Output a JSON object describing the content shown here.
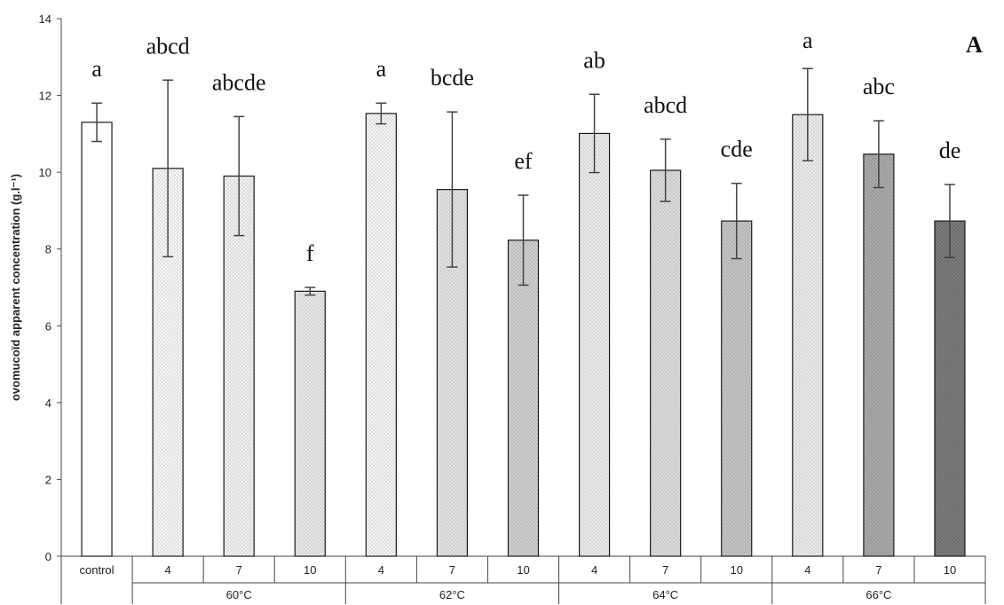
{
  "chart_data": {
    "type": "bar",
    "title": "",
    "panel_label": "A",
    "ylabel": "ovomucoïd apparent concentration (g.l⁻¹)",
    "xlabel": "",
    "ylim": [
      0,
      14
    ],
    "yticks": [
      0,
      2,
      4,
      6,
      8,
      10,
      12,
      14
    ],
    "grid": false,
    "legend": "none",
    "categories": [
      "control",
      "4",
      "7",
      "10",
      "4",
      "7",
      "10",
      "4",
      "7",
      "10",
      "4",
      "7",
      "10"
    ],
    "groups": [
      {
        "label": "",
        "members": [
          0
        ]
      },
      {
        "label": "60°C",
        "members": [
          1,
          2,
          3
        ]
      },
      {
        "label": "62°C",
        "members": [
          4,
          5,
          6
        ]
      },
      {
        "label": "64°C",
        "members": [
          7,
          8,
          9
        ]
      },
      {
        "label": "66°C",
        "members": [
          10,
          11,
          12
        ]
      }
    ],
    "values": [
      11.3,
      10.1,
      9.9,
      6.9,
      11.53,
      9.55,
      8.23,
      11.01,
      10.05,
      8.73,
      11.5,
      10.47,
      8.73
    ],
    "error": [
      0.5,
      2.3,
      1.55,
      0.1,
      0.27,
      2.02,
      1.17,
      1.02,
      0.81,
      0.98,
      1.2,
      0.87,
      0.95
    ],
    "significance_letters": [
      "a",
      "abcd",
      "abcde",
      "f",
      "a",
      "bcde",
      "ef",
      "ab",
      "abcd",
      "cde",
      "a",
      "abc",
      "de"
    ],
    "bar_fills": [
      "#ffffff",
      "#f6f6f6",
      "#f1f1f1",
      "#e8e8e8",
      "#f4f4f4",
      "#e3e3e3",
      "#cfcfcf",
      "#ececec",
      "#dcdcdc",
      "#c4c4c4",
      "#ebebeb",
      "#a9a9a9",
      "#7a7a7a"
    ]
  }
}
